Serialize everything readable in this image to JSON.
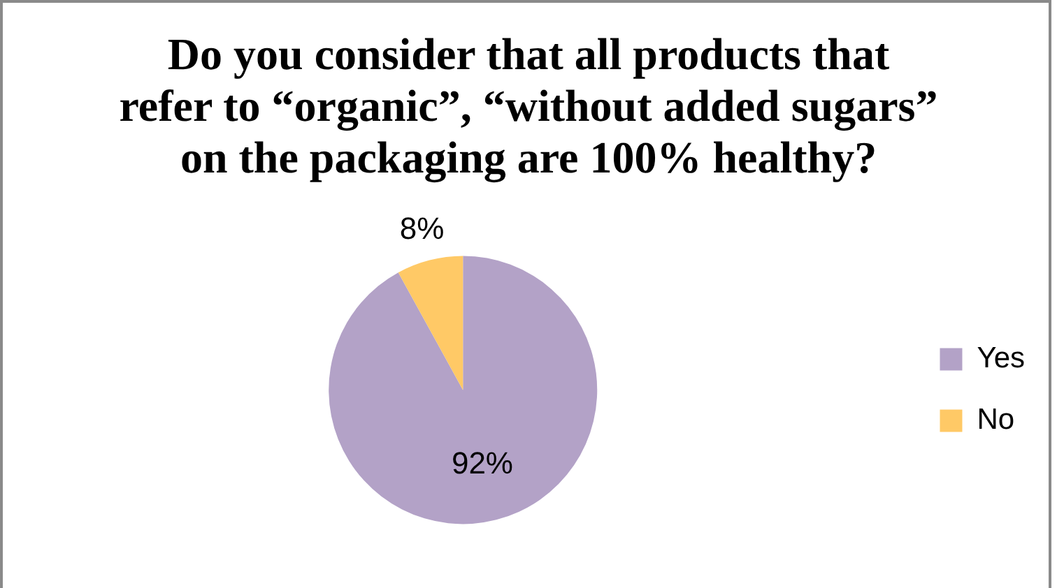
{
  "chart_data": {
    "type": "pie",
    "title": "Do you consider that all products that\nrefer to “organic”, “without added sugars”\non the packaging are 100% healthy?",
    "categories": [
      "Yes",
      "No"
    ],
    "values": [
      92,
      8
    ],
    "colors": [
      "#b3a2c7",
      "#ffc966"
    ],
    "value_labels": [
      "92%",
      "8%"
    ],
    "legend": "right"
  }
}
